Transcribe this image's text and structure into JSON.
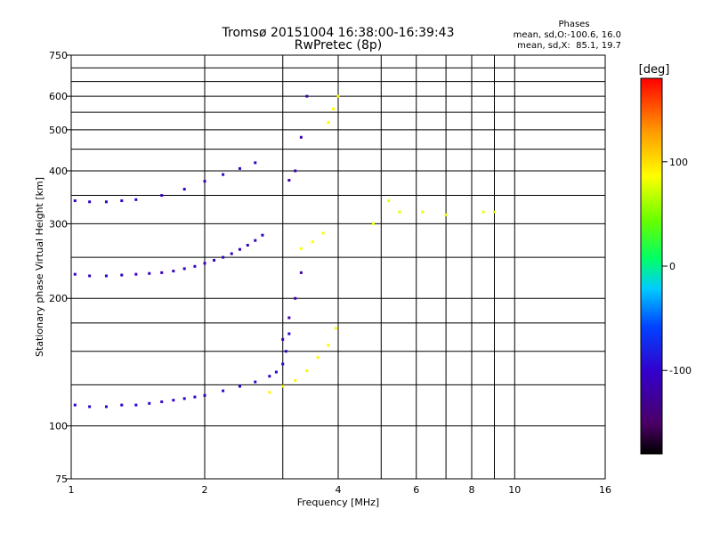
{
  "chart_data": {
    "type": "scatter",
    "title": "Tromsø 20151004 16:38:00-16:39:43",
    "subtitle": "RwPretec (8p)",
    "xlabel": "Frequency [MHz]",
    "ylabel": "Stationary phase Virtual Height [km]",
    "x_scale": "log",
    "y_scale": "log",
    "xlim": [
      1,
      16
    ],
    "ylim": [
      75,
      750
    ],
    "x_ticks": [
      1,
      2,
      4,
      6,
      8,
      10,
      16
    ],
    "x_tick_labels": [
      "1",
      "2",
      "4",
      "6",
      "8",
      "10",
      "16"
    ],
    "x_minor_grid": [
      3,
      5,
      7,
      9
    ],
    "y_ticks": [
      75,
      100,
      200,
      300,
      400,
      500,
      600,
      750
    ],
    "y_tick_labels": [
      "75",
      "100",
      "200",
      "300",
      "400",
      "500",
      "600",
      "750"
    ],
    "y_minor_grid": [
      125,
      150,
      175,
      250,
      350,
      450,
      550,
      650,
      700
    ],
    "grid": true,
    "phase_info": {
      "title": "Phases",
      "line_o": "mean, sd,O:-100.6, 16.0",
      "line_x": "mean, sd,X:  85.1, 19.7"
    },
    "colorbar": {
      "label": "[deg]",
      "min": -180,
      "max": 180,
      "ticks": [
        100,
        0,
        -100
      ],
      "tick_labels": [
        "100",
        "0",
        "-100"
      ]
    },
    "series": [
      {
        "x": [
          1.02,
          1.1,
          1.2,
          1.3,
          1.4,
          1.5,
          1.6,
          1.7,
          1.8,
          1.9,
          2.0,
          2.2,
          2.4,
          2.6,
          2.8,
          2.9,
          3.0,
          3.05,
          3.1
        ],
        "y": [
          112,
          111,
          111,
          112,
          112,
          113,
          114,
          115,
          116,
          117,
          118,
          121,
          124,
          127,
          131,
          134,
          140,
          150,
          165
        ],
        "phase": -100
      },
      {
        "x": [
          1.02,
          1.1,
          1.2,
          1.3,
          1.4,
          1.5,
          1.6,
          1.7,
          1.8,
          1.9,
          2.0,
          2.1,
          2.2,
          2.3,
          2.4,
          2.5,
          2.6,
          2.7
        ],
        "y": [
          228,
          226,
          226,
          227,
          228,
          229,
          230,
          232,
          235,
          238,
          242,
          246,
          250,
          255,
          261,
          267,
          274,
          282
        ],
        "phase": -108
      },
      {
        "x": [
          1.02,
          1.1,
          1.2,
          1.3,
          1.4,
          1.6,
          1.8,
          2.0,
          2.2,
          2.4,
          2.6
        ],
        "y": [
          340,
          338,
          338,
          340,
          342,
          350,
          362,
          378,
          392,
          405,
          418
        ],
        "phase": -105
      },
      {
        "x": [
          3.1,
          3.2,
          3.3,
          3.4
        ],
        "y": [
          380,
          400,
          480,
          600
        ],
        "phase": -115
      },
      {
        "x": [
          3.0,
          3.1,
          3.2,
          3.3
        ],
        "y": [
          160,
          180,
          200,
          230
        ],
        "phase": -120
      },
      {
        "x": [
          2.8,
          3.0,
          3.2,
          3.4,
          3.6,
          3.8,
          3.95
        ],
        "y": [
          120,
          124,
          128,
          135,
          145,
          155,
          170
        ],
        "phase": 90
      },
      {
        "x": [
          3.8,
          3.9,
          4.0
        ],
        "y": [
          520,
          560,
          600
        ],
        "phase": 85
      },
      {
        "x": [
          3.3,
          3.5,
          3.7
        ],
        "y": [
          262,
          272,
          285
        ],
        "phase": 85
      },
      {
        "x": [
          4.8,
          5.2,
          5.5,
          6.2,
          7.0,
          8.5,
          9.0
        ],
        "y": [
          300,
          340,
          320,
          320,
          315,
          320,
          320
        ],
        "phase": 80
      }
    ]
  }
}
